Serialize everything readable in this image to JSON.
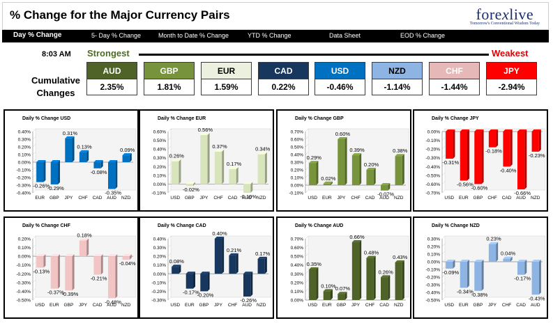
{
  "header": {
    "title": "% Change for the Major Currency Pairs",
    "logo_main": "fore",
    "logo_x": "x",
    "logo_end": "live",
    "logo_tagline": "Tomorrow's Conventional Wisdom Today"
  },
  "nav": {
    "items": [
      {
        "label": "Day % Change"
      },
      {
        "label": "5- Day % Change"
      },
      {
        "label": "Month to Date % Change"
      },
      {
        "label": "YTD % Change"
      },
      {
        "label": "Data Sheet"
      },
      {
        "label": "EOD % Change"
      }
    ]
  },
  "summary": {
    "time": "8:03 AM",
    "strongest_label": "Strongest",
    "weakest_label": "Weakest",
    "cumulative_label_line1": "Cumulative",
    "cumulative_label_line2": "Changes",
    "currencies": [
      {
        "name": "AUD",
        "value": "2.35%",
        "bg": "#4f6228",
        "fg": "#ffffff"
      },
      {
        "name": "GBP",
        "value": "1.81%",
        "bg": "#77933c",
        "fg": "#ffffff"
      },
      {
        "name": "EUR",
        "value": "1.59%",
        "bg": "#ebf1de",
        "fg": "#000000"
      },
      {
        "name": "CAD",
        "value": "0.22%",
        "bg": "#17375e",
        "fg": "#ffffff"
      },
      {
        "name": "USD",
        "value": "-0.46%",
        "bg": "#0070c0",
        "fg": "#ffffff"
      },
      {
        "name": "NZD",
        "value": "-1.14%",
        "bg": "#8db4e2",
        "fg": "#000000"
      },
      {
        "name": "CHF",
        "value": "-1.44%",
        "bg": "#e6b8b7",
        "fg": "#ffffff"
      },
      {
        "name": "JPY",
        "value": "-2.94%",
        "bg": "#ff0000",
        "fg": "#ffffff"
      }
    ]
  },
  "chart_data": [
    {
      "type": "bar",
      "title": "Daily % Change USD",
      "categories": [
        "EUR",
        "GBP",
        "JPY",
        "CHF",
        "CAD",
        "AUD",
        "NZD"
      ],
      "values": [
        -0.26,
        -0.29,
        0.31,
        0.13,
        -0.08,
        -0.35,
        0.09
      ],
      "labels": [
        "-0.26%",
        "-0.29%",
        "0.31%",
        "0.13%",
        "-0.08%",
        "-0.35%",
        "0.09%"
      ],
      "ylim": [
        -0.4,
        0.4
      ],
      "yticks": [
        -0.4,
        -0.3,
        -0.2,
        -0.1,
        0,
        0.1,
        0.2,
        0.3,
        0.4
      ],
      "ytick_labels": [
        "-0.40%",
        "-0.30%",
        "-0.20%",
        "-0.10%",
        "0.00%",
        "0.10%",
        "0.20%",
        "0.30%",
        "0.40%"
      ],
      "color": "#0070c0"
    },
    {
      "type": "bar",
      "title": "Daily % Change EUR",
      "categories": [
        "USD",
        "GBP",
        "JPY",
        "CHF",
        "CAD",
        "AUD",
        "NZD"
      ],
      "values": [
        0.26,
        -0.02,
        0.56,
        0.37,
        0.17,
        -0.1,
        0.34
      ],
      "labels": [
        "0.26%",
        "-0.02%",
        "0.56%",
        "0.37%",
        "0.17%",
        "-0.10%",
        "0.34%"
      ],
      "ylim": [
        -0.1,
        0.6
      ],
      "yticks": [
        -0.1,
        0,
        0.1,
        0.2,
        0.3,
        0.4,
        0.5,
        0.6
      ],
      "ytick_labels": [
        "-0.10%",
        "0.00%",
        "0.10%",
        "0.20%",
        "0.30%",
        "0.40%",
        "0.50%",
        "0.60%"
      ],
      "color": "#d8e4bc"
    },
    {
      "type": "bar",
      "title": "Daily % Change GBP",
      "categories": [
        "USD",
        "EUR",
        "JPY",
        "CHF",
        "CAD",
        "AUD",
        "NZD"
      ],
      "values": [
        0.29,
        0.02,
        0.6,
        0.39,
        0.2,
        -0.07,
        0.38
      ],
      "labels": [
        "0.29%",
        "0.02%",
        "0.60%",
        "0.39%",
        "0.20%",
        "-0.07%",
        "0.38%"
      ],
      "ylim": [
        -0.1,
        0.7
      ],
      "yticks": [
        -0.1,
        0,
        0.1,
        0.2,
        0.3,
        0.4,
        0.5,
        0.6,
        0.7
      ],
      "ytick_labels": [
        "-0.10%",
        "0.00%",
        "0.10%",
        "0.20%",
        "0.30%",
        "0.40%",
        "0.50%",
        "0.60%",
        "0.70%"
      ],
      "color": "#77933c"
    },
    {
      "type": "bar",
      "title": "Daily % Change JPY",
      "categories": [
        "USD",
        "EUR",
        "GBP",
        "CHF",
        "CAD",
        "AUD",
        "NZD"
      ],
      "values": [
        -0.31,
        -0.56,
        -0.6,
        -0.18,
        -0.4,
        -0.66,
        -0.23
      ],
      "labels": [
        "-0.31%",
        "-0.56%",
        "-0.60%",
        "-0.18%",
        "-0.40%",
        "-0.66%",
        "-0.23%"
      ],
      "ylim": [
        -0.7,
        0
      ],
      "yticks": [
        -0.7,
        -0.6,
        -0.5,
        -0.4,
        -0.3,
        -0.2,
        -0.1,
        0
      ],
      "ytick_labels": [
        "-0.70%",
        "-0.60%",
        "-0.50%",
        "-0.40%",
        "-0.30%",
        "-0.20%",
        "-0.10%",
        "0.00%"
      ],
      "color": "#ff0000"
    },
    {
      "type": "bar",
      "title": "Daily % Change CHF",
      "categories": [
        "USD",
        "EUR",
        "GBP",
        "JPY",
        "CAD",
        "AUD",
        "NZD"
      ],
      "values": [
        -0.13,
        -0.37,
        -0.39,
        0.18,
        -0.21,
        -0.48,
        -0.04
      ],
      "labels": [
        "-0.13%",
        "-0.37%",
        "-0.39%",
        "0.18%",
        "-0.21%",
        "-0.48%",
        "-0.04%"
      ],
      "ylim": [
        -0.5,
        0.2
      ],
      "yticks": [
        -0.5,
        -0.4,
        -0.3,
        -0.2,
        -0.1,
        0,
        0.1,
        0.2
      ],
      "ytick_labels": [
        "-0.50%",
        "-0.40%",
        "-0.30%",
        "-0.20%",
        "-0.10%",
        "0.00%",
        "0.10%",
        "0.20%"
      ],
      "color": "#f2c4c4"
    },
    {
      "type": "bar",
      "title": "Daily % Change CAD",
      "categories": [
        "USD",
        "EUR",
        "GBP",
        "JPY",
        "CHF",
        "AUD",
        "NZD"
      ],
      "values": [
        0.08,
        -0.17,
        -0.2,
        0.4,
        0.21,
        -0.26,
        0.17
      ],
      "labels": [
        "0.08%",
        "-0.17%",
        "-0.20%",
        "0.40%",
        "0.21%",
        "-0.26%",
        "0.17%"
      ],
      "ylim": [
        -0.3,
        0.4
      ],
      "yticks": [
        -0.3,
        -0.2,
        -0.1,
        0,
        0.1,
        0.2,
        0.3,
        0.4
      ],
      "ytick_labels": [
        "-0.30%",
        "-0.20%",
        "-0.10%",
        "0.00%",
        "0.10%",
        "0.20%",
        "0.30%",
        "0.40%"
      ],
      "color": "#17375e"
    },
    {
      "type": "bar",
      "title": "Daily % Change AUD",
      "categories": [
        "USD",
        "EUR",
        "GBP",
        "JPY",
        "CHF",
        "CAD",
        "NZD"
      ],
      "values": [
        0.35,
        0.1,
        0.07,
        0.66,
        0.48,
        0.26,
        0.43
      ],
      "labels": [
        "0.35%",
        "0.10%",
        "0.07%",
        "0.66%",
        "0.48%",
        "0.26%",
        "0.43%"
      ],
      "ylim": [
        0,
        0.7
      ],
      "yticks": [
        0,
        0.1,
        0.2,
        0.3,
        0.4,
        0.5,
        0.6,
        0.7
      ],
      "ytick_labels": [
        "0.00%",
        "0.10%",
        "0.20%",
        "0.30%",
        "0.40%",
        "0.50%",
        "0.60%",
        "0.70%"
      ],
      "color": "#4f6228"
    },
    {
      "type": "bar",
      "title": "Daily % Change NZD",
      "categories": [
        "USD",
        "EUR",
        "GBP",
        "JPY",
        "CHF",
        "CAD",
        "AUD"
      ],
      "values": [
        -0.09,
        -0.34,
        -0.38,
        0.23,
        0.04,
        -0.17,
        -0.43
      ],
      "labels": [
        "-0.09%",
        "-0.34%",
        "-0.38%",
        "0.23%",
        "0.04%",
        "-0.17%",
        "-0.43%"
      ],
      "ylim": [
        -0.5,
        0.3
      ],
      "yticks": [
        -0.5,
        -0.4,
        -0.3,
        -0.2,
        -0.1,
        0,
        0.1,
        0.2,
        0.3
      ],
      "ytick_labels": [
        "-0.50%",
        "-0.40%",
        "-0.30%",
        "-0.20%",
        "-0.10%",
        "0.00%",
        "0.10%",
        "0.20%",
        "0.30%"
      ],
      "color": "#8db4e2"
    }
  ]
}
